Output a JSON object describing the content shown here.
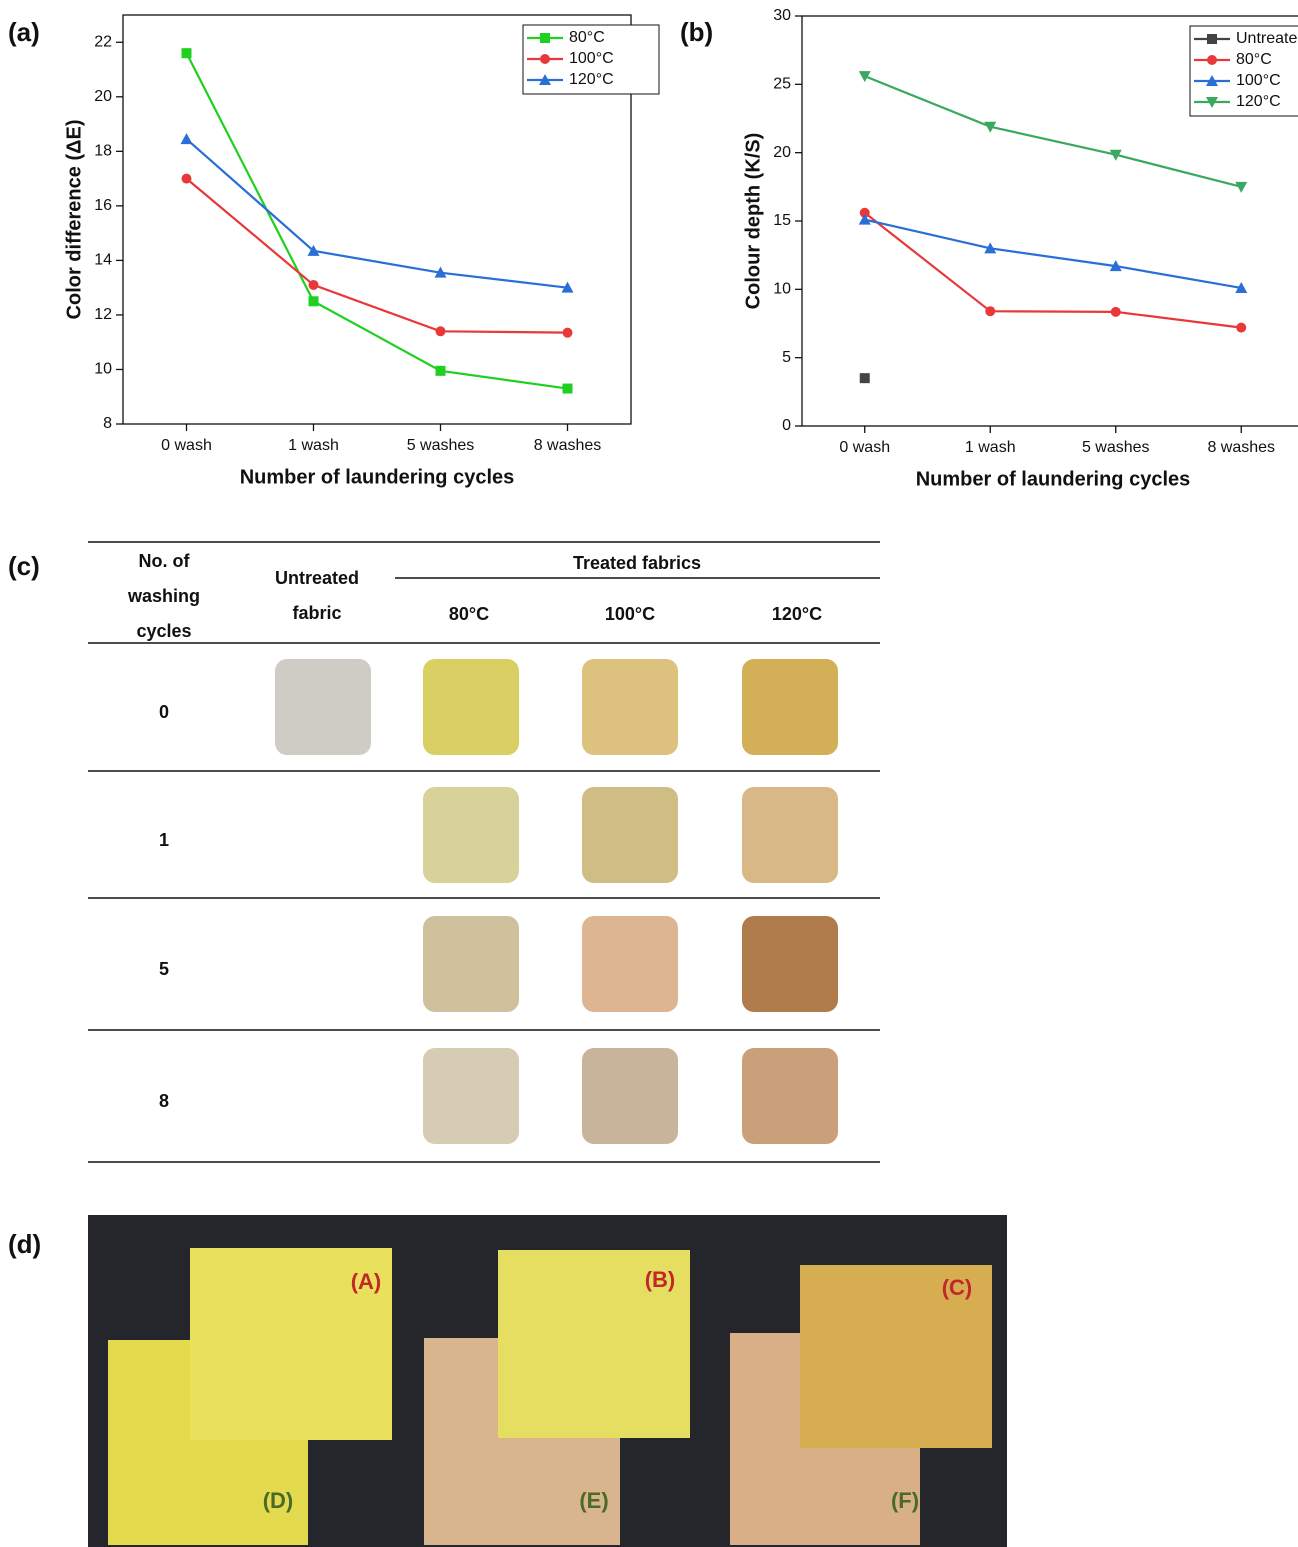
{
  "panels": [
    "(a)",
    "(b)",
    "(c)",
    "(d)"
  ],
  "chart_data": [
    {
      "type": "line",
      "x_label": "Number of laundering cycles",
      "y_label": "Color difference (ΔE)",
      "categories": [
        "0 wash",
        "1 wash",
        "5 washes",
        "8 washes"
      ],
      "ylim": [
        8,
        23
      ],
      "yticks": [
        8,
        10,
        12,
        14,
        16,
        18,
        20,
        22
      ],
      "legend": "upper right",
      "series": [
        {
          "name": "80°C",
          "color": "#1fd01f",
          "marker": "square",
          "values": [
            21.6,
            12.5,
            9.95,
            9.3
          ]
        },
        {
          "name": "100°C",
          "color": "#e8383a",
          "marker": "circle",
          "values": [
            17.0,
            13.1,
            11.4,
            11.35
          ]
        },
        {
          "name": "120°C",
          "color": "#2a6fd6",
          "marker": "triangle-up",
          "values": [
            18.45,
            14.35,
            13.55,
            13.0
          ]
        }
      ]
    },
    {
      "type": "line",
      "x_label": "Number of laundering cycles",
      "y_label": "Colour depth (K/S)",
      "categories": [
        "0 wash",
        "1 wash",
        "5 washes",
        "8 washes"
      ],
      "ylim": [
        0,
        30
      ],
      "yticks": [
        0,
        5,
        10,
        15,
        20,
        25,
        30
      ],
      "legend": "upper right",
      "series": [
        {
          "name": "Untreated",
          "color": "#444444",
          "marker": "square",
          "values": [
            3.5,
            null,
            null,
            null
          ]
        },
        {
          "name": "80°C",
          "color": "#e8383a",
          "marker": "circle",
          "values": [
            15.6,
            8.4,
            8.35,
            7.2
          ]
        },
        {
          "name": "100°C",
          "color": "#2a6fd6",
          "marker": "triangle-up",
          "values": [
            15.1,
            13.0,
            11.7,
            10.1
          ]
        },
        {
          "name": "120°C",
          "color": "#3aa860",
          "marker": "triangle-down",
          "values": [
            25.6,
            21.9,
            19.85,
            17.5
          ]
        }
      ]
    }
  ],
  "table": {
    "header": {
      "cycles": [
        "No. of",
        "washing",
        "cycles"
      ],
      "untreated": [
        "Untreated",
        "fabric"
      ],
      "treated": "Treated fabrics",
      "temperatures": [
        "80°C",
        "100°C",
        "120°C"
      ]
    },
    "rows": [
      "0",
      "1",
      "5",
      "8"
    ]
  },
  "photo": {
    "labels": [
      "(A)",
      "(B)",
      "(C)",
      "(D)",
      "(E)",
      "(F)"
    ]
  }
}
